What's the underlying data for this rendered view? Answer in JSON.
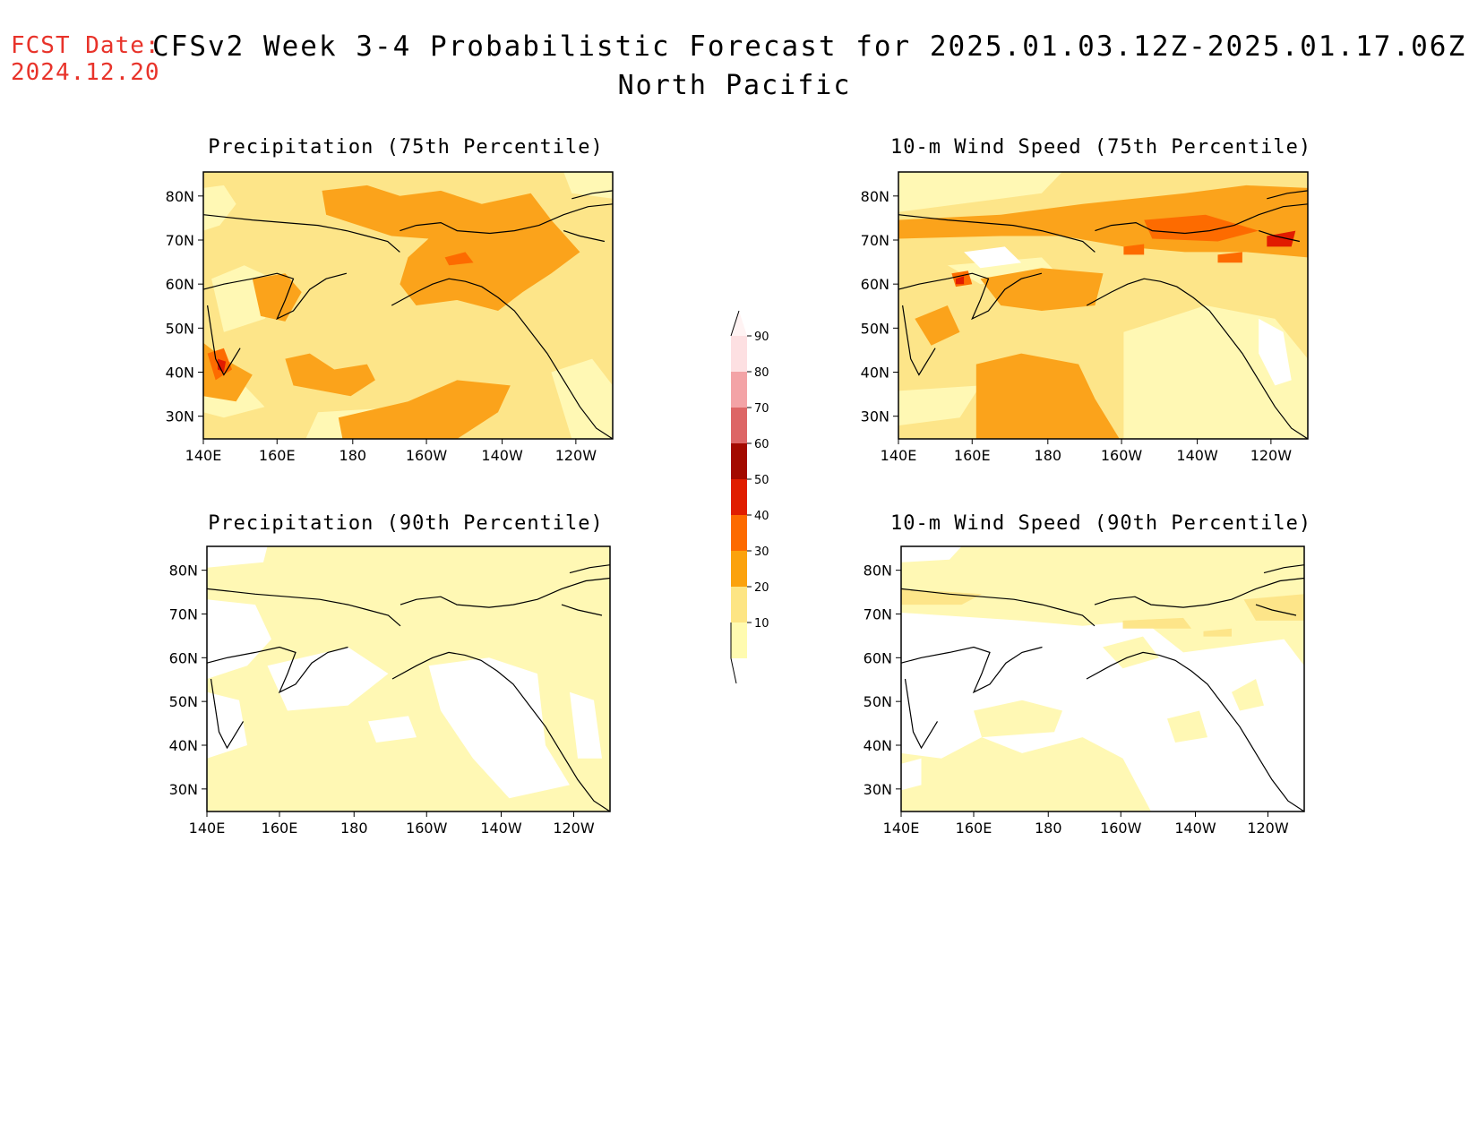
{
  "header": {
    "fcst_label": "FCST Date:",
    "fcst_date": "2024.12.20",
    "title": "CFSv2 Week 3-4 Probabilistic Forecast for 2025.01.03.12Z-2025.01.17.06Z",
    "region": "North Pacific"
  },
  "panels": [
    {
      "id": "precip75",
      "title": "Precipitation (75th Percentile)"
    },
    {
      "id": "wind75",
      "title": "10-m Wind Speed (75th Percentile)"
    },
    {
      "id": "precip90",
      "title": "Precipitation (90th Percentile)"
    },
    {
      "id": "wind90",
      "title": "10-m Wind Speed (90th Percentile)"
    }
  ],
  "axes": {
    "lat_labels": [
      "80N",
      "70N",
      "60N",
      "50N",
      "40N",
      "30N"
    ],
    "lon_labels": [
      "140E",
      "160E",
      "180",
      "160W",
      "140W",
      "120W"
    ]
  },
  "colorbar": {
    "levels": [
      "10",
      "20",
      "30",
      "40",
      "50",
      "60",
      "70",
      "80",
      "90"
    ],
    "colors": [
      "#fffbb0",
      "#fde584",
      "#fba20d",
      "#fd6a00",
      "#e01d00",
      "#a30a00",
      "#dd6666",
      "#f3a3a6",
      "#fde0e2"
    ]
  },
  "map_colors": {
    "white": "#ffffff",
    "c10": "#fff8b4",
    "c20": "#fde589",
    "c30": "#fba31b",
    "c40": "#fd6b00",
    "c50": "#e11b00",
    "c60": "#a50900"
  }
}
